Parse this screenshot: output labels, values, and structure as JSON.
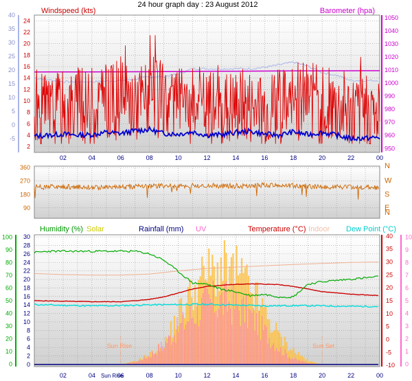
{
  "title": "24 hour graph day : 23 August 2012",
  "colors": {
    "wind": "#e00000",
    "wind_avg": "#0000cc",
    "baro": "#cc00cc",
    "baro_line": "#aab4e8",
    "dir": "#cc6600",
    "humidity": "#00aa00",
    "solar": "#ffc040",
    "rain": "#000080",
    "uv": "#ff66cc",
    "temp": "#cc0000",
    "indoor": "#f0b090",
    "dew": "#00dddd",
    "sunrise": "#ff9966"
  },
  "chart_data": [
    {
      "type": "line",
      "title": "24 hour graph day : 23 August 2012",
      "x_tick_labels": [
        "02",
        "04",
        "06",
        "08",
        "10",
        "12",
        "14",
        "16",
        "18",
        "20",
        "22",
        "00"
      ],
      "left_axis": {
        "label": "Windspeed (kts)",
        "ticks": [
          2,
          4,
          6,
          8,
          10,
          12,
          14,
          16,
          18,
          20,
          22,
          24
        ],
        "ylim": [
          1,
          25
        ]
      },
      "left_outer_axis": {
        "ticks": [
          -5,
          0,
          5,
          10,
          15,
          20,
          25,
          30,
          35,
          40
        ],
        "ylim": [
          -10,
          40
        ]
      },
      "right_axis": {
        "label": "Barometer (hpa)",
        "ticks": [
          950,
          960,
          970,
          980,
          990,
          1000,
          1010,
          1020,
          1030,
          1040,
          1050
        ],
        "ylim": [
          947,
          1052
        ]
      },
      "series": [
        {
          "x": [
            0,
            2,
            4,
            6,
            7,
            7.5,
            8,
            9,
            10,
            11,
            12,
            13,
            14,
            15,
            16,
            17,
            18,
            19,
            20,
            21,
            22,
            23,
            24
          ],
          "values": [
            1004,
            1001,
            1001,
            1002,
            1003,
            1004,
            1005,
            1005,
            1007,
            1011,
            1011,
            1011,
            1011,
            1011,
            1012,
            1014,
            1016,
            1013,
            1008,
            1006,
            1002,
            1002,
            1002
          ]
        },
        {
          "x": [
            0,
            8,
            12,
            18,
            24
          ],
          "values": [
            1008.5,
            1008.7,
            1009,
            1009.3,
            1009.5
          ]
        },
        {
          "x": [
            0,
            1,
            2,
            3,
            4,
            5,
            6,
            7,
            8,
            9,
            10,
            11,
            12,
            13,
            14,
            15,
            16,
            17,
            18,
            19,
            20,
            21,
            22,
            23,
            24
          ],
          "values": [
            11,
            11,
            12,
            12,
            12,
            13,
            13,
            13,
            14,
            13,
            13,
            12,
            12,
            12,
            12,
            12,
            12,
            12,
            13,
            13,
            12,
            12,
            11,
            11,
            11
          ]
        },
        {
          "x": [
            0,
            1,
            2,
            3,
            4,
            5,
            6,
            7,
            8,
            9,
            10,
            11,
            12,
            13,
            14,
            15,
            16,
            17,
            18,
            19,
            20,
            21,
            22,
            23,
            24
          ],
          "values": [
            3.8,
            4.0,
            4.2,
            4.0,
            4.1,
            4.5,
            4.3,
            4.8,
            5.0,
            4.3,
            4.2,
            4.6,
            4.0,
            4.1,
            4.5,
            4.7,
            4.2,
            4.0,
            4.6,
            4.1,
            4.5,
            4.0,
            3.4,
            3.5,
            3.6
          ]
        }
      ]
    },
    {
      "type": "line",
      "left_axis": {
        "ticks": [
          90,
          180,
          270,
          360
        ],
        "ylim": [
          20,
          370
        ]
      },
      "right_labels": [
        "N",
        "W",
        "S",
        "E",
        "N"
      ],
      "series": [
        {
          "x": [
            0,
            2,
            4,
            6,
            8,
            10,
            12,
            14,
            16,
            18,
            20,
            22,
            24
          ],
          "values": [
            228,
            232,
            226,
            230,
            235,
            238,
            240,
            236,
            242,
            238,
            232,
            230,
            228
          ]
        }
      ]
    },
    {
      "type": "line",
      "x_tick_labels": [
        "02",
        "04",
        "06",
        "08",
        "10",
        "12",
        "14",
        "16",
        "18",
        "20",
        "22",
        "00"
      ],
      "legend": [
        "Humidity (%)",
        "Solar",
        "Rainfall (mm)",
        "UV",
        "Temperature (°C)",
        "Indoor",
        "Dew Point (°C)"
      ],
      "annotations": [
        "Sun Rise",
        "Sun Set",
        "Sun Rise"
      ],
      "humidity_axis": {
        "ticks": [
          0,
          10,
          20,
          30,
          40,
          50,
          60,
          70,
          80,
          90,
          100
        ],
        "ylim": [
          -2,
          102
        ]
      },
      "rain_axis": {
        "ticks": [
          0,
          2,
          4,
          6,
          8,
          10,
          12,
          14,
          16,
          18,
          20,
          22,
          24,
          26,
          28,
          30
        ],
        "ylim": [
          -0.5,
          30.5
        ]
      },
      "temp_axis": {
        "ticks": [
          -10,
          -5,
          0,
          5,
          10,
          15,
          20,
          25,
          30,
          35,
          40
        ],
        "ylim": [
          -10.5,
          40.5
        ]
      },
      "uv_axis": {
        "ticks": [
          0,
          1,
          2,
          3,
          4,
          5,
          6,
          7,
          8,
          9,
          10
        ],
        "ylim": [
          -0.2,
          10.2
        ]
      },
      "sunrise_hour": 6.0,
      "sunset_hour": 20.0,
      "series": [
        {
          "name": "Humidity (%)",
          "x": [
            0,
            1,
            2,
            4,
            6,
            7,
            8,
            9,
            10,
            11,
            12,
            13,
            14,
            15,
            16,
            17,
            18,
            19,
            20,
            21,
            22,
            23,
            24
          ],
          "values": [
            88,
            89,
            89,
            89,
            89,
            89,
            87,
            82,
            73,
            64,
            63,
            59,
            57,
            54,
            55,
            53,
            53,
            63,
            65,
            66,
            67,
            68,
            69
          ]
        },
        {
          "name": "Solar",
          "x": [
            6,
            7,
            8,
            9,
            10,
            11,
            12,
            13,
            14,
            15,
            16,
            17,
            18,
            19,
            20
          ],
          "values": [
            0,
            1,
            3,
            6,
            15,
            22,
            27,
            28,
            27,
            22,
            15,
            8,
            4,
            1,
            0
          ]
        },
        {
          "name": "UV",
          "x": [
            6,
            7,
            8,
            9,
            10,
            11,
            12,
            13,
            14,
            15,
            16,
            17,
            18,
            19,
            20
          ],
          "values": [
            0,
            0.2,
            0.8,
            2.0,
            3.5,
            5.0,
            6.0,
            6.2,
            5.8,
            4.8,
            3.2,
            1.5,
            0.5,
            0.1,
            0
          ]
        },
        {
          "name": "Temperature (°C)",
          "x": [
            0,
            2,
            4,
            6,
            7,
            8,
            9,
            10,
            11,
            12,
            13,
            14,
            15,
            16,
            17,
            18,
            19,
            20,
            21,
            22,
            23,
            24
          ],
          "values": [
            15.0,
            14.8,
            14.6,
            14.6,
            15.0,
            15.5,
            16.5,
            18.0,
            19.5,
            20.5,
            21.0,
            21.3,
            21.5,
            21.4,
            21.2,
            20.5,
            19.5,
            18.5,
            18.0,
            17.5,
            17.2,
            17.0
          ]
        },
        {
          "name": "Indoor",
          "x": [
            0,
            2,
            4,
            6,
            8,
            10,
            12,
            14,
            16,
            18,
            20,
            22,
            24
          ],
          "values": [
            25.5,
            25.1,
            24.9,
            24.9,
            25.3,
            26.5,
            27.5,
            28.0,
            28.5,
            29.0,
            29.4,
            29.8,
            30.0
          ]
        },
        {
          "name": "Dew Point (°C)",
          "x": [
            0,
            2,
            4,
            6,
            8,
            10,
            12,
            14,
            16,
            18,
            20,
            22,
            24
          ],
          "values": [
            13.5,
            13.2,
            13.0,
            13.1,
            13.4,
            13.5,
            13.6,
            13.3,
            13.0,
            13.1,
            13.0,
            12.8,
            12.8
          ]
        },
        {
          "name": "Rainfall (mm)",
          "x": [
            0,
            24
          ],
          "values": [
            0,
            0
          ]
        }
      ]
    }
  ]
}
